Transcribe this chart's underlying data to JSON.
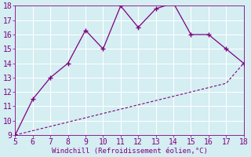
{
  "x_upper": [
    5,
    6,
    7,
    8,
    9,
    10,
    11,
    12,
    13,
    14,
    15,
    16,
    17,
    18
  ],
  "y_upper": [
    9.0,
    11.5,
    13.0,
    14.0,
    16.3,
    15.0,
    18.0,
    16.5,
    17.8,
    18.2,
    16.0,
    16.0,
    15.0,
    14.0
  ],
  "x_lower": [
    5,
    6,
    7,
    8,
    9,
    10,
    11,
    12,
    13,
    14,
    15,
    16,
    17,
    18
  ],
  "y_lower": [
    9.0,
    9.3,
    9.6,
    9.9,
    10.2,
    10.5,
    10.8,
    11.1,
    11.4,
    11.7,
    12.0,
    12.3,
    12.6,
    14.0
  ],
  "line_color": "#800080",
  "marker": "+",
  "xlabel": "Windchill (Refroidissement éolien,°C)",
  "xlim": [
    5,
    18
  ],
  "ylim": [
    9,
    18
  ],
  "xticks": [
    5,
    6,
    7,
    8,
    9,
    10,
    11,
    12,
    13,
    14,
    15,
    16,
    17,
    18
  ],
  "yticks": [
    9,
    10,
    11,
    12,
    13,
    14,
    15,
    16,
    17,
    18
  ],
  "bg_color": "#d4eef2",
  "grid_color": "#b8d8e0",
  "tick_color": "#800080",
  "label_color": "#800080",
  "font_family": "monospace",
  "tick_fontsize": 7,
  "xlabel_fontsize": 6.5
}
